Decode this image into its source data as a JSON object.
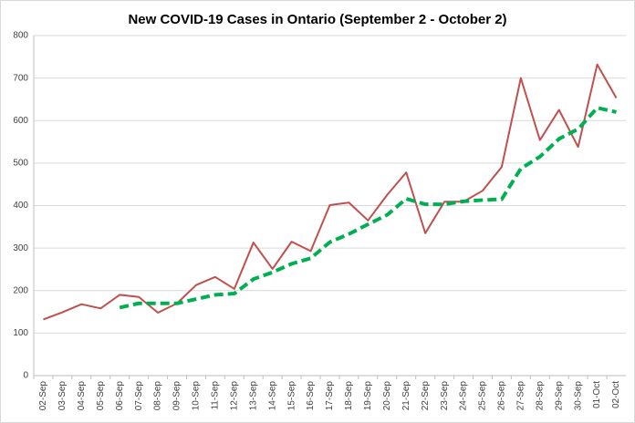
{
  "chart_data": {
    "type": "line",
    "title": "New COVID-19 Cases in Ontario (September 2 - October 2)",
    "categories": [
      "02-Sep",
      "03-Sep",
      "04-Sep",
      "05-Sep",
      "06-Sep",
      "07-Sep",
      "08-Sep",
      "09-Sep",
      "10-Sep",
      "11-Sep",
      "12-Sep",
      "13-Sep",
      "14-Sep",
      "15-Sep",
      "16-Sep",
      "17-Sep",
      "18-Sep",
      "19-Sep",
      "20-Sep",
      "21-Sep",
      "22-Sep",
      "23-Sep",
      "24-Sep",
      "25-Sep",
      "26-Sep",
      "27-Sep",
      "28-Sep",
      "29-Sep",
      "30-Sep",
      "01-Oct",
      "02-Oct"
    ],
    "series": [
      {
        "color": "#c0504d",
        "dashed": false,
        "values": [
          132,
          149,
          168,
          158,
          190,
          185,
          148,
          170,
          213,
          232,
          204,
          313,
          251,
          315,
          293,
          401,
          407,
          365,
          425,
          478,
          335,
          409,
          409,
          435,
          491,
          700,
          554,
          625,
          538,
          732,
          653
        ]
      },
      {
        "color": "#00b050",
        "dashed": true,
        "values": [
          null,
          null,
          null,
          null,
          160,
          170,
          170,
          170,
          180,
          190,
          193,
          227,
          243,
          263,
          276,
          314,
          333,
          356,
          378,
          416,
          403,
          403,
          410,
          413,
          415,
          487,
          515,
          557,
          580,
          630,
          620
        ]
      }
    ],
    "ylim": [
      0,
      800
    ],
    "yticks": [
      0,
      100,
      200,
      300,
      400,
      500,
      600,
      700,
      800
    ],
    "grid": true
  }
}
